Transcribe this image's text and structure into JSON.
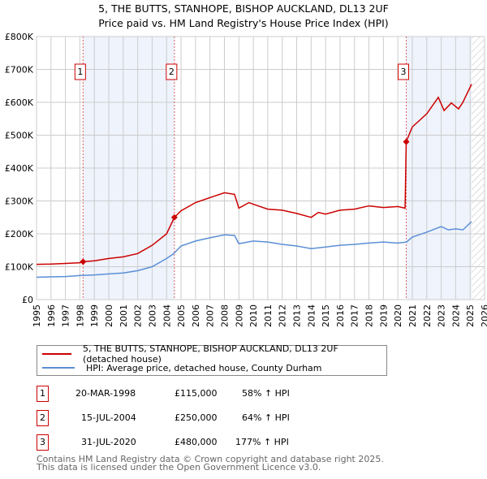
{
  "chart_data": {
    "type": "line",
    "title": "5, THE BUTTS, STANHOPE, BISHOP AUCKLAND, DL13 2UF",
    "subtitle": "Price paid vs. HM Land Registry's House Price Index (HPI)",
    "xlim": [
      1995,
      2026
    ],
    "ylim": [
      0,
      800000
    ],
    "yticks": [
      0,
      100000,
      200000,
      300000,
      400000,
      500000,
      600000,
      700000,
      800000
    ],
    "ytick_labels": [
      "£0",
      "£100K",
      "£200K",
      "£300K",
      "£400K",
      "£500K",
      "£600K",
      "£700K",
      "£800K"
    ],
    "xticks": [
      "1995",
      "1996",
      "1997",
      "1998",
      "1999",
      "2000",
      "2001",
      "2002",
      "2003",
      "2004",
      "2005",
      "2006",
      "2007",
      "2008",
      "2009",
      "2010",
      "2011",
      "2012",
      "2013",
      "2014",
      "2015",
      "2016",
      "2017",
      "2018",
      "2019",
      "2020",
      "2021",
      "2022",
      "2023",
      "2024",
      "2025",
      "2026"
    ],
    "grid": true,
    "series": [
      {
        "name": "5, THE BUTTS, STANHOPE, BISHOP AUCKLAND, DL13 2UF (detached house)",
        "color": "#cc0000",
        "x": [
          1995,
          1996,
          1997,
          1998,
          1998.22,
          1999,
          2000,
          2001,
          2002,
          2003,
          2004,
          2004.54,
          2005,
          2006,
          2007,
          2008,
          2008.7,
          2009,
          2009.7,
          2010,
          2011,
          2012,
          2013,
          2014,
          2014.5,
          2015,
          2016,
          2017,
          2018,
          2019,
          2020,
          2020.5,
          2020.58,
          2021,
          2022,
          2022.8,
          2023.2,
          2023.7,
          2024.2,
          2024.5,
          2025.1
        ],
        "y": [
          107000,
          108000,
          110000,
          112000,
          115000,
          118000,
          125000,
          130000,
          140000,
          165000,
          200000,
          250000,
          270000,
          295000,
          310000,
          325000,
          320000,
          278000,
          295000,
          290000,
          275000,
          272000,
          262000,
          250000,
          265000,
          260000,
          272000,
          275000,
          285000,
          280000,
          283000,
          278000,
          480000,
          525000,
          565000,
          615000,
          575000,
          598000,
          580000,
          600000,
          655000
        ]
      },
      {
        "name": "HPI: Average price, detached house, County Durham",
        "color": "#5b8fd6",
        "x": [
          1995,
          1996,
          1997,
          1998,
          1999,
          2000,
          2001,
          2002,
          2003,
          2004,
          2004.5,
          2005,
          2006,
          2007,
          2008,
          2008.7,
          2009,
          2010,
          2011,
          2012,
          2013,
          2014,
          2015,
          2016,
          2017,
          2018,
          2019,
          2020,
          2020.6,
          2021,
          2022,
          2023,
          2023.5,
          2024,
          2024.5,
          2025.1
        ],
        "y": [
          68000,
          69000,
          70000,
          73000,
          75000,
          78000,
          81000,
          88000,
          100000,
          125000,
          140000,
          163000,
          178000,
          188000,
          197000,
          195000,
          170000,
          178000,
          175000,
          168000,
          163000,
          155000,
          160000,
          165000,
          168000,
          172000,
          175000,
          172000,
          175000,
          190000,
          205000,
          222000,
          212000,
          215000,
          212000,
          237000
        ]
      }
    ],
    "sales": [
      {
        "n": "1",
        "x": 1998.22,
        "date": "20-MAR-1998",
        "price": "£115,000",
        "value": 115000,
        "hpi": "58% ↑ HPI"
      },
      {
        "n": "2",
        "x": 2004.54,
        "date": "15-JUL-2004",
        "price": "£250,000",
        "value": 250000,
        "hpi": "64% ↑ HPI"
      },
      {
        "n": "3",
        "x": 2020.58,
        "date": "31-JUL-2020",
        "price": "£480,000",
        "value": 480000,
        "hpi": "177% ↑ HPI"
      }
    ],
    "shaded_ranges": [
      [
        1998.22,
        2004.54
      ],
      [
        2020.58,
        2025.1
      ]
    ],
    "forecast_from": 2025.1
  },
  "footer": {
    "line1": "Contains HM Land Registry data © Crown copyright and database right 2025.",
    "line2": "This data is licensed under the Open Government Licence v3.0."
  }
}
